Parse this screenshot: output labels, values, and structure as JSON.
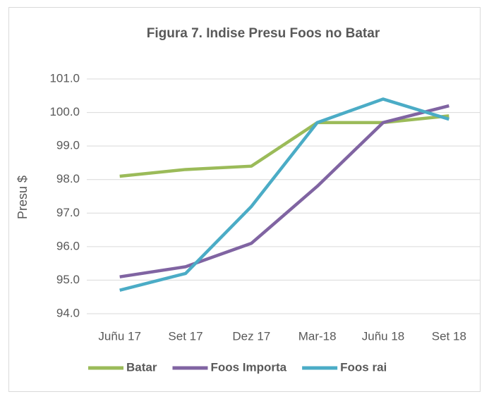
{
  "chart_data": {
    "type": "line",
    "title": "Figura 7. Indise Presu Foos no Batar",
    "y_label": "Presu $",
    "categories": [
      "Juñu 17",
      "Set 17",
      "Dez 17",
      "Mar-18",
      "Juñu 18",
      "Set 18"
    ],
    "series": [
      {
        "name": "Batar",
        "color": "#9bbb59",
        "values": [
          98.1,
          98.3,
          98.4,
          99.7,
          99.7,
          99.9
        ]
      },
      {
        "name": "Foos Importa",
        "color": "#8064a2",
        "values": [
          95.1,
          95.4,
          96.1,
          97.8,
          99.7,
          100.2
        ]
      },
      {
        "name": "Foos rai",
        "color": "#4bacc6",
        "values": [
          94.7,
          95.2,
          97.2,
          99.7,
          100.4,
          99.8
        ]
      }
    ],
    "ylim": [
      94,
      101
    ],
    "yticks": [
      {
        "value": 94,
        "label": "94.0"
      },
      {
        "value": 95,
        "label": "95.0"
      },
      {
        "value": 96,
        "label": "96.0"
      },
      {
        "value": 97,
        "label": "97.0"
      },
      {
        "value": 98,
        "label": "98.0"
      },
      {
        "value": 99,
        "label": "99.0"
      },
      {
        "value": 100,
        "label": "100.0"
      },
      {
        "value": 101,
        "label": "101.0"
      }
    ],
    "grid": true,
    "legend": "bottom"
  }
}
